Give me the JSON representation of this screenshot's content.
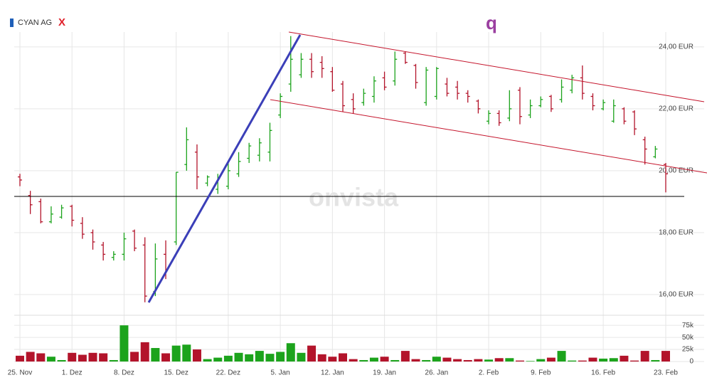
{
  "chart_data": {
    "type": "ohlc",
    "name": "CYAN AG",
    "marker_x": "X",
    "marker_q": "q",
    "watermark": "onvista",
    "categories": [
      "25. Nov",
      null,
      null,
      null,
      null,
      "1. Dez",
      null,
      null,
      null,
      null,
      "8. Dez",
      null,
      null,
      null,
      null,
      "15. Dez",
      null,
      null,
      null,
      null,
      "22. Dez",
      null,
      null,
      null,
      null,
      "5. Jan",
      null,
      null,
      null,
      null,
      "12. Jan",
      null,
      null,
      null,
      null,
      "19. Jan",
      null,
      null,
      null,
      null,
      "26. Jan",
      null,
      null,
      null,
      null,
      "2. Feb",
      null,
      null,
      null,
      null,
      "9. Feb",
      null,
      null,
      null,
      null,
      null,
      "16. Feb",
      null,
      null,
      null,
      null,
      null,
      "23. Feb"
    ],
    "open": [
      19.8,
      19.2,
      19.0,
      18.35,
      18.5,
      18.85,
      18.3,
      18.0,
      17.6,
      17.2,
      17.3,
      18.05,
      17.6,
      16.1,
      17.3,
      17.7,
      20.2,
      20.6,
      19.6,
      19.4,
      19.5,
      19.9,
      20.4,
      20.5,
      20.6,
      21.8,
      22.8,
      23.1,
      23.6,
      23.5,
      23.2,
      22.8,
      22.3,
      22.2,
      22.4,
      23.0,
      22.9,
      23.8,
      23.4,
      22.2,
      22.4,
      22.8,
      22.7,
      22.5,
      22.25,
      21.6,
      21.85,
      21.7,
      22.6,
      21.8,
      22.1,
      22.4,
      22.3,
      22.6,
      23.0,
      22.4,
      22.0,
      21.6,
      22.0,
      21.9,
      21.0,
      20.45,
      20.2
    ],
    "high": [
      19.9,
      19.35,
      19.1,
      18.85,
      18.9,
      18.9,
      18.5,
      18.1,
      17.7,
      17.4,
      18.0,
      18.1,
      17.85,
      17.65,
      17.75,
      19.95,
      21.4,
      20.85,
      19.85,
      19.9,
      20.25,
      20.6,
      20.9,
      21.05,
      21.55,
      22.5,
      24.35,
      23.8,
      23.8,
      23.7,
      23.35,
      22.9,
      22.5,
      22.65,
      23.05,
      23.2,
      23.85,
      23.85,
      23.45,
      23.35,
      23.35,
      23.0,
      22.9,
      22.6,
      22.3,
      21.95,
      21.95,
      22.6,
      22.7,
      22.3,
      22.4,
      22.45,
      22.95,
      23.1,
      23.4,
      22.5,
      22.3,
      22.3,
      22.05,
      21.95,
      21.1,
      20.8,
      20.25
    ],
    "low": [
      19.5,
      18.6,
      18.3,
      18.3,
      18.45,
      18.2,
      17.8,
      17.45,
      17.1,
      17.1,
      17.1,
      17.4,
      15.75,
      15.95,
      16.5,
      17.6,
      20.0,
      19.4,
      19.5,
      19.25,
      19.4,
      19.8,
      20.25,
      20.3,
      20.3,
      21.7,
      22.55,
      23.0,
      23.0,
      23.0,
      22.55,
      21.9,
      21.85,
      22.1,
      22.2,
      22.6,
      22.75,
      23.45,
      22.65,
      22.1,
      22.3,
      22.4,
      22.3,
      22.2,
      21.85,
      21.5,
      21.45,
      21.6,
      21.5,
      21.7,
      22.05,
      21.9,
      22.2,
      22.5,
      22.3,
      21.95,
      21.95,
      21.55,
      21.5,
      21.15,
      20.2,
      20.4,
      19.3
    ],
    "close": [
      19.7,
      18.9,
      18.35,
      18.6,
      18.8,
      18.4,
      17.95,
      17.7,
      17.3,
      17.3,
      17.8,
      17.5,
      15.95,
      17.15,
      16.8,
      19.95,
      21.0,
      19.8,
      19.8,
      19.75,
      20.0,
      20.3,
      20.8,
      20.9,
      21.3,
      22.4,
      23.6,
      23.6,
      23.2,
      23.3,
      22.6,
      22.1,
      22.0,
      22.5,
      22.9,
      22.7,
      23.6,
      23.5,
      22.85,
      23.25,
      23.3,
      22.5,
      22.5,
      22.4,
      22.0,
      21.85,
      21.55,
      22.0,
      21.75,
      22.1,
      22.3,
      22.0,
      22.7,
      23.0,
      22.5,
      22.1,
      22.2,
      22.1,
      21.6,
      21.35,
      20.7,
      20.7,
      19.9
    ],
    "volume": [
      12000,
      20000,
      17000,
      10000,
      3000,
      18000,
      14000,
      18000,
      17000,
      3000,
      75000,
      20000,
      40000,
      28000,
      17000,
      33000,
      35000,
      25000,
      5000,
      8000,
      12000,
      18000,
      15000,
      22000,
      16000,
      20000,
      38000,
      18000,
      33000,
      15000,
      10000,
      17000,
      5000,
      3000,
      8000,
      10000,
      3000,
      22000,
      5000,
      3000,
      10000,
      8000,
      5000,
      3000,
      5000,
      4000,
      7000,
      7000,
      2000,
      1000,
      5000,
      8000,
      22000,
      2000,
      2000,
      8000,
      6000,
      7000,
      12000,
      2000,
      22000,
      3000,
      22000
    ],
    "up_color": "#1ca31c",
    "down_color": "#b3142b",
    "ylim": [
      15.4,
      24.48
    ],
    "yticks": [
      {
        "value": 16,
        "label": "16,00 EUR"
      },
      {
        "value": 18,
        "label": "18,00 EUR"
      },
      {
        "value": 20,
        "label": "20,00 EUR"
      },
      {
        "value": 22,
        "label": "22,00 EUR"
      },
      {
        "value": 24,
        "label": "24,00 EUR"
      }
    ],
    "volume_ylim": [
      0,
      90000
    ],
    "volume_yticks": [
      0,
      {
        "value": 25000,
        "label": "25k"
      },
      {
        "value": 50000,
        "label": "50k"
      },
      {
        "value": 75000,
        "label": "75k"
      }
    ],
    "grid": true
  }
}
